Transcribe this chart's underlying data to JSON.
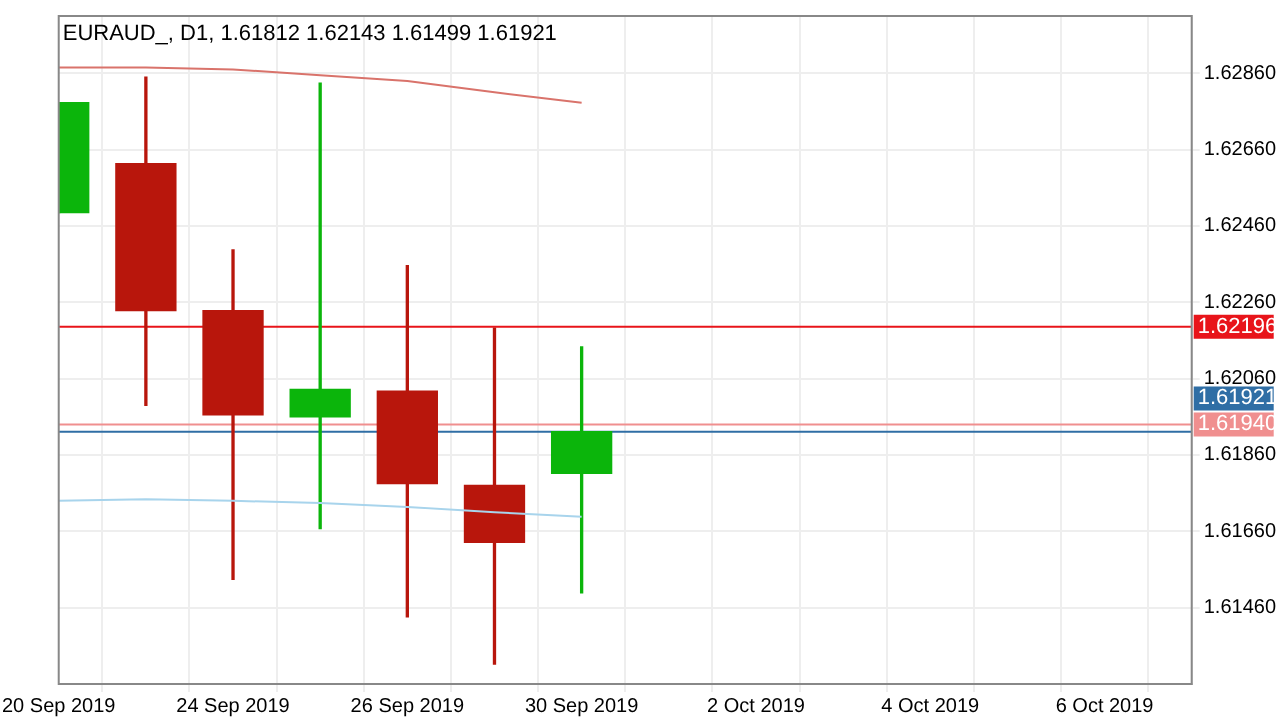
{
  "chart_data": {
    "type": "candlestick",
    "title": "EURAUD_, D1, 1.61812 1.62143 1.61499 1.61921",
    "categories": [
      "20 Sep 2019",
      null,
      "24 Sep 2019",
      null,
      "26 Sep 2019",
      null,
      "30 Sep 2019",
      null,
      "2 Oct 2019",
      null,
      "4 Oct 2019",
      null,
      "6 Oct 2019",
      null
    ],
    "ohlc": [
      [
        1.62495,
        1.62783,
        1.62495,
        1.62783
      ],
      [
        1.62623,
        1.6285,
        1.6199,
        1.62238
      ],
      [
        1.62238,
        1.62397,
        1.61534,
        1.61965
      ],
      [
        1.6196,
        1.62834,
        1.61667,
        1.62032
      ],
      [
        1.62027,
        1.62356,
        1.61436,
        1.61785
      ],
      [
        1.6178,
        1.62192,
        1.61312,
        1.61631
      ],
      [
        1.61812,
        1.62143,
        1.61499,
        1.61921
      ],
      null,
      null,
      null,
      null,
      null,
      null,
      null
    ],
    "colors": [
      "#0bb50b",
      "#b8160c",
      "#b8160c",
      "#0bb50b",
      "#b8160c",
      "#b8160c",
      "#0bb50b",
      null,
      null,
      null,
      null,
      null,
      null,
      null
    ],
    "series": [
      {
        "type": "line",
        "color": "#d9736b",
        "values": [
          1.62875,
          1.62875,
          1.6287,
          1.62855,
          1.6284,
          1.6281,
          1.62783,
          null,
          null,
          null,
          null,
          null,
          null,
          null
        ]
      },
      {
        "type": "line",
        "color": "#a8d4ec",
        "values": [
          1.6174,
          1.61744,
          1.6174,
          1.61734,
          1.61724,
          1.6171,
          1.61698,
          null,
          null,
          null,
          null,
          null,
          null,
          null
        ]
      }
    ],
    "ylim": [
      1.6126,
      1.6301
    ],
    "yticks": [
      {
        "value": 1.6146,
        "label": "1.61460"
      },
      {
        "value": 1.6166,
        "label": "1.61660"
      },
      {
        "value": 1.6186,
        "label": "1.61860"
      },
      {
        "value": 1.6206,
        "label": "1.62060"
      },
      {
        "value": 1.6226,
        "label": "1.62260"
      },
      {
        "value": 1.6246,
        "label": "1.62460"
      },
      {
        "value": 1.6266,
        "label": "1.62660"
      },
      {
        "value": 1.6286,
        "label": "1.62860"
      }
    ],
    "ref_lines": [
      {
        "axis": "y",
        "value": 1.62196,
        "label": "1.62196",
        "color": "#e8141a"
      },
      {
        "axis": "y",
        "value": 1.6194,
        "label": "1.61940",
        "color": "#f08f8f"
      },
      {
        "axis": "y",
        "value": 1.61921,
        "label": "1.61921",
        "color": "#2f6ea5"
      }
    ],
    "grid": true,
    "legend": false
  }
}
